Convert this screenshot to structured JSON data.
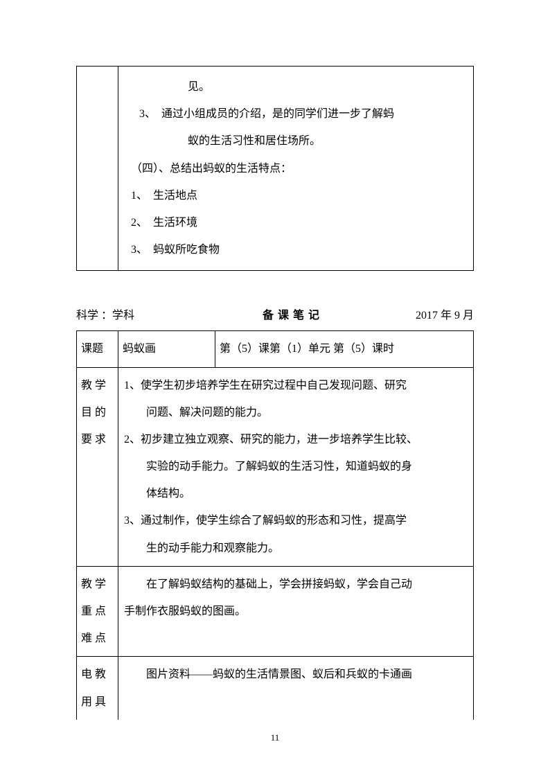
{
  "table1": {
    "lines": [
      {
        "cls": "indent1",
        "text": "见。"
      },
      {
        "cls": "indent-num",
        "text": "3、　通过小组成员的介绍，是的同学们进一步了解蚂"
      },
      {
        "cls": "indent-num2",
        "text": "蚁的生活习性和居住场所。"
      },
      {
        "cls": "indent-sec",
        "text": "（四）、总结出蚂蚁的生活特点："
      },
      {
        "cls": "indent-sub",
        "text": "1、　生活地点"
      },
      {
        "cls": "indent-sub",
        "text": "2、　生活环境"
      },
      {
        "cls": "indent-sub",
        "text": "3、　蚂蚁所吃食物"
      }
    ]
  },
  "header": {
    "subject_label": "科学 ：学科",
    "title": "备课笔记",
    "date": "2017 年 9 月"
  },
  "table2": {
    "row1": {
      "label": "课题",
      "topic": "蚂蚁画",
      "period": "第（5）课第（1）单元 第（5）课时"
    },
    "row2": {
      "label_line1": "教 学",
      "label_line2": "目 的",
      "label_line3": "要 求",
      "lines": [
        "1、使学生初步培养学生在研究过程中自己发现问题、研究",
        "　　问题、解决问题的能力。",
        "2、初步建立独立观察、研究的能力，进一步培养学生比较、",
        "　　实验的动手能力。了解蚂蚁的生活习性，知道蚂蚁的身",
        "　　体结构。",
        "3、通过制作，使学生综合了解蚂蚁的形态和习性，提高学",
        "　　生的动手能力和观察能力。"
      ]
    },
    "row3": {
      "label_line1": "教 学",
      "label_line2": "重 点",
      "label_line3": "难 点",
      "lines": [
        "　　在了解蚂蚁结构的基础上，学会拼接蚂蚁，学会自己动",
        "手制作衣服蚂蚁的图画。"
      ]
    },
    "row4": {
      "label_line1": "电 教",
      "label_line2": "用 具",
      "lines": [
        "　　图片资料——蚂蚁的生活情景图、蚁后和兵蚁的卡通画"
      ]
    }
  },
  "page_number": "11"
}
